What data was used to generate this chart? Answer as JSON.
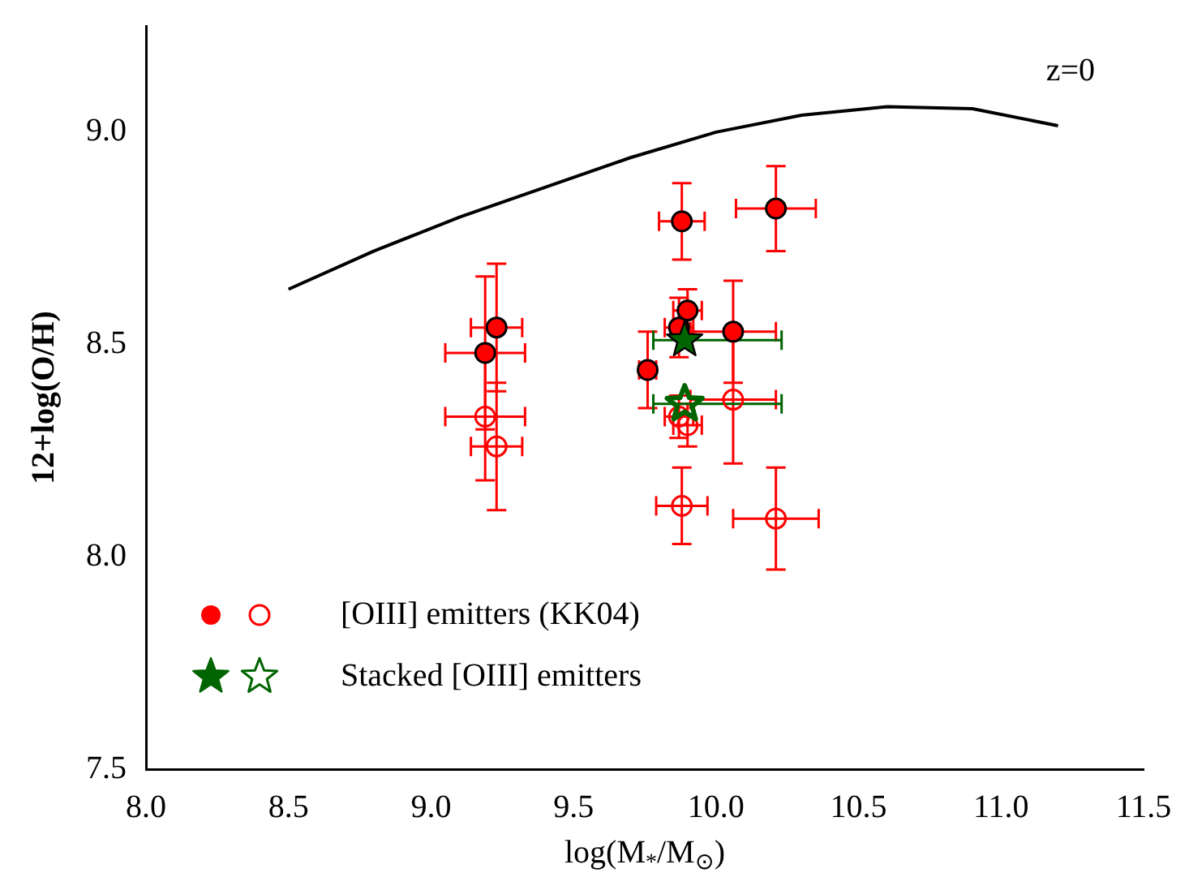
{
  "chart_data": {
    "type": "scatter",
    "xlabel": "log(M$_{*}$/M$_{⊙}$)",
    "ylabel": "12+log(O/H)",
    "xlim": [
      8.0,
      11.5
    ],
    "ylim": [
      7.5,
      9.25
    ],
    "xticks": [
      {
        "value": 8,
        "label": "8.0"
      },
      {
        "value": 8.5,
        "label": "8.5"
      },
      {
        "value": 9,
        "label": "9.0"
      },
      {
        "value": 9.5,
        "label": "9.5"
      },
      {
        "value": 10,
        "label": "10.0"
      },
      {
        "value": 10.5,
        "label": "10.5"
      },
      {
        "value": 11,
        "label": "11.0"
      },
      {
        "value": 11.5,
        "label": "11.5"
      }
    ],
    "yticks": [
      {
        "value": 7.5,
        "label": "7.5"
      },
      {
        "value": 8,
        "label": "8.0"
      },
      {
        "value": 8.5,
        "label": "8.5"
      },
      {
        "value": 9,
        "label": "9.0"
      }
    ],
    "grid": false,
    "legend": "bottom left",
    "annotations": [
      "z=0"
    ],
    "series": [
      {
        "type": "line",
        "color": "#000000",
        "marker": "none",
        "x": [
          8.5,
          8.8,
          9.1,
          9.4,
          9.7,
          10.0,
          10.3,
          10.6,
          10.9,
          11.2
        ],
        "values": [
          8.63,
          8.72,
          8.8,
          8.87,
          8.94,
          9.0,
          9.04,
          9.06,
          9.055,
          9.015
        ]
      },
      {
        "name": "[OIII] emitters (KK04)",
        "color": "#ff0000",
        "marker": "circle",
        "x": [
          9.23,
          9.19,
          9.88,
          10.21,
          9.87,
          9.9,
          9.76,
          10.06
        ],
        "values": [
          8.54,
          8.48,
          8.79,
          8.82,
          8.54,
          8.58,
          8.44,
          8.53
        ],
        "xerrors": [
          0.09,
          0.14,
          0.08,
          0.14,
          0.05,
          0.05,
          0.03,
          0.15
        ],
        "errors": [
          0.15,
          0.18,
          0.09,
          0.1,
          0.07,
          0.05,
          0.09,
          0.12
        ]
      },
      {
        "color": "#ff0000",
        "marker": "circle",
        "x": [
          9.19,
          9.23,
          9.88,
          10.21,
          10.06,
          9.9,
          9.87
        ],
        "values": [
          8.33,
          8.26,
          8.12,
          8.09,
          8.37,
          8.31,
          8.33
        ],
        "xerrors": [
          0.14,
          0.09,
          0.09,
          0.15,
          0.15,
          0.05,
          0.05
        ],
        "errors": [
          0.15,
          0.15,
          0.09,
          0.12,
          0.15,
          0.05,
          0.05
        ]
      },
      {
        "name": "Stacked [OIII] emitters",
        "color": "#006400",
        "marker": "star",
        "x": [
          9.89
        ],
        "values": [
          8.51
        ],
        "xerrors": [
          [
            9.78,
            10.23
          ]
        ]
      },
      {
        "color": "#006400",
        "marker": "star",
        "x": [
          9.89
        ],
        "values": [
          8.36
        ],
        "xerrors": [
          [
            9.78,
            10.23
          ]
        ]
      }
    ]
  }
}
